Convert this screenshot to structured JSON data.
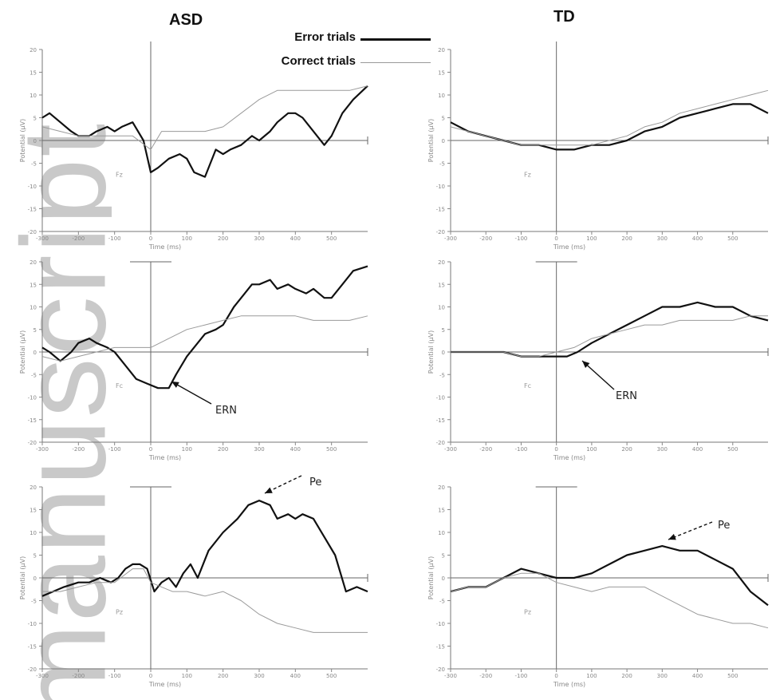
{
  "figure": {
    "group_titles": [
      "ASD",
      "TD"
    ],
    "legend": [
      {
        "label": "Error trials",
        "color": "#111111",
        "style": "thick"
      },
      {
        "label": "Correct trials",
        "color": "#9a9a9a",
        "style": "thin"
      }
    ],
    "watermark": "manuscript"
  },
  "chart_data": [
    {
      "type": "line",
      "panel": "ASD-1",
      "group": "ASD",
      "xlabel": "Time (ms)",
      "ylabel": "Potential (µV)",
      "xlim": [
        -300,
        600
      ],
      "ylim": [
        -20,
        20
      ],
      "xticks": [
        -300,
        -200,
        -100,
        0,
        100,
        200,
        300,
        400,
        500
      ],
      "yticks": [
        20,
        15,
        10,
        5,
        0,
        -5,
        -10,
        -15,
        -20
      ],
      "electrode_label": "Fz",
      "series": [
        {
          "name": "Error trials",
          "color": "#111111",
          "x": [
            -300,
            -280,
            -250,
            -220,
            -200,
            -170,
            -150,
            -120,
            -100,
            -80,
            -50,
            -20,
            0,
            20,
            50,
            80,
            100,
            120,
            150,
            180,
            200,
            220,
            250,
            280,
            300,
            330,
            350,
            380,
            400,
            420,
            450,
            480,
            500,
            530,
            560,
            600
          ],
          "y": [
            5,
            6,
            4,
            2,
            1,
            1,
            2,
            3,
            2,
            3,
            4,
            0,
            -7,
            -6,
            -4,
            -3,
            -4,
            -7,
            -8,
            -2,
            -3,
            -2,
            -1,
            1,
            0,
            2,
            4,
            6,
            6,
            5,
            2,
            -1,
            1,
            6,
            9,
            12
          ]
        },
        {
          "name": "Correct trials",
          "color": "#9a9a9a",
          "x": [
            -300,
            -250,
            -200,
            -150,
            -100,
            -50,
            0,
            30,
            60,
            100,
            150,
            200,
            250,
            300,
            350,
            400,
            450,
            500,
            550,
            600
          ],
          "y": [
            3,
            2,
            1,
            1,
            1,
            1,
            -2,
            2,
            2,
            2,
            2,
            3,
            6,
            9,
            11,
            11,
            11,
            11,
            11,
            12
          ]
        }
      ]
    },
    {
      "type": "line",
      "panel": "TD-1",
      "group": "TD",
      "xlabel": "Time (ms)",
      "ylabel": "Potential (µV)",
      "xlim": [
        -300,
        600
      ],
      "ylim": [
        -20,
        20
      ],
      "xticks": [
        -300,
        -200,
        -100,
        0,
        100,
        200,
        300,
        400,
        500
      ],
      "yticks": [
        20,
        15,
        10,
        5,
        0,
        -5,
        -10,
        -15,
        -20
      ],
      "electrode_label": "Fz",
      "series": [
        {
          "name": "Error trials",
          "color": "#111111",
          "x": [
            -300,
            -250,
            -200,
            -150,
            -100,
            -50,
            0,
            50,
            100,
            150,
            200,
            250,
            300,
            350,
            400,
            450,
            500,
            550,
            600
          ],
          "y": [
            4,
            2,
            1,
            0,
            -1,
            -1,
            -2,
            -2,
            -1,
            -1,
            0,
            2,
            3,
            5,
            6,
            7,
            8,
            8,
            6
          ]
        },
        {
          "name": "Correct trials",
          "color": "#9a9a9a",
          "x": [
            -300,
            -250,
            -200,
            -150,
            -100,
            -50,
            0,
            50,
            100,
            150,
            200,
            250,
            300,
            350,
            400,
            450,
            500,
            550,
            600
          ],
          "y": [
            3,
            2,
            1,
            0,
            -1,
            -1,
            -1,
            -1,
            -1,
            0,
            1,
            3,
            4,
            6,
            7,
            8,
            9,
            10,
            11
          ]
        }
      ]
    },
    {
      "type": "line",
      "panel": "ASD-2",
      "group": "ASD",
      "xlabel": "Time (ms)",
      "ylabel": "Potential (µV)",
      "xlim": [
        -300,
        600
      ],
      "ylim": [
        -20,
        20
      ],
      "xticks": [
        -300,
        -200,
        -100,
        0,
        100,
        200,
        300,
        400,
        500
      ],
      "yticks": [
        20,
        15,
        10,
        5,
        0,
        -5,
        -10,
        -15,
        -20
      ],
      "electrode_label": "Fc",
      "annotation": "ERN",
      "series": [
        {
          "name": "Error trials",
          "color": "#111111",
          "x": [
            -300,
            -280,
            -250,
            -220,
            -200,
            -170,
            -150,
            -120,
            -100,
            -70,
            -40,
            -10,
            20,
            50,
            70,
            100,
            130,
            150,
            180,
            200,
            230,
            260,
            280,
            300,
            330,
            350,
            380,
            400,
            430,
            450,
            480,
            500,
            530,
            560,
            600
          ],
          "y": [
            1,
            0,
            -2,
            0,
            2,
            3,
            2,
            1,
            0,
            -3,
            -6,
            -7,
            -8,
            -8,
            -5,
            -1,
            2,
            4,
            5,
            6,
            10,
            13,
            15,
            15,
            16,
            14,
            15,
            14,
            13,
            14,
            12,
            12,
            15,
            18,
            19
          ]
        },
        {
          "name": "Correct trials",
          "color": "#9a9a9a",
          "x": [
            -300,
            -250,
            -200,
            -150,
            -100,
            -50,
            0,
            50,
            100,
            150,
            200,
            250,
            300,
            350,
            400,
            450,
            500,
            550,
            600
          ],
          "y": [
            -1,
            -2,
            -1,
            0,
            1,
            1,
            1,
            3,
            5,
            6,
            7,
            8,
            8,
            8,
            8,
            7,
            7,
            7,
            8
          ]
        }
      ]
    },
    {
      "type": "line",
      "panel": "TD-2",
      "group": "TD",
      "xlabel": "Time (ms)",
      "ylabel": "Potential (µV)",
      "xlim": [
        -300,
        600
      ],
      "ylim": [
        -20,
        20
      ],
      "xticks": [
        -300,
        -200,
        -100,
        0,
        100,
        200,
        300,
        400,
        500
      ],
      "yticks": [
        20,
        15,
        10,
        5,
        0,
        -5,
        -10,
        -15,
        -20
      ],
      "electrode_label": "Fc",
      "annotation": "ERN",
      "series": [
        {
          "name": "Error trials",
          "color": "#111111",
          "x": [
            -300,
            -250,
            -200,
            -150,
            -100,
            -50,
            0,
            30,
            60,
            100,
            150,
            200,
            250,
            300,
            350,
            400,
            450,
            500,
            550,
            600
          ],
          "y": [
            0,
            0,
            0,
            0,
            -1,
            -1,
            -1,
            -1,
            0,
            2,
            4,
            6,
            8,
            10,
            10,
            11,
            10,
            10,
            8,
            7
          ]
        },
        {
          "name": "Correct trials",
          "color": "#9a9a9a",
          "x": [
            -300,
            -250,
            -200,
            -150,
            -100,
            -50,
            0,
            50,
            100,
            150,
            200,
            250,
            300,
            350,
            400,
            450,
            500,
            550,
            600
          ],
          "y": [
            0,
            0,
            0,
            0,
            -1,
            -1,
            0,
            1,
            3,
            4,
            5,
            6,
            6,
            7,
            7,
            7,
            7,
            8,
            8
          ]
        }
      ]
    },
    {
      "type": "line",
      "panel": "ASD-3",
      "group": "ASD",
      "xlabel": "Time (ms)",
      "ylabel": "Potential (µV)",
      "xlim": [
        -300,
        600
      ],
      "ylim": [
        -20,
        20
      ],
      "xticks": [
        -300,
        -200,
        -100,
        0,
        100,
        200,
        300,
        400,
        500
      ],
      "yticks": [
        20,
        15,
        10,
        5,
        0,
        -5,
        -10,
        -15,
        -20
      ],
      "electrode_label": "Pz",
      "annotation": "Pe",
      "series": [
        {
          "name": "Error trials",
          "color": "#111111",
          "x": [
            -300,
            -270,
            -240,
            -200,
            -170,
            -140,
            -110,
            -90,
            -70,
            -50,
            -30,
            -10,
            10,
            30,
            50,
            70,
            90,
            110,
            130,
            160,
            200,
            240,
            270,
            300,
            330,
            350,
            380,
            400,
            420,
            450,
            480,
            510,
            540,
            570,
            600
          ],
          "y": [
            -4,
            -3,
            -2,
            -1,
            -1,
            0,
            -1,
            0,
            2,
            3,
            3,
            2,
            -3,
            -1,
            0,
            -2,
            1,
            3,
            0,
            6,
            10,
            13,
            16,
            17,
            16,
            13,
            14,
            13,
            14,
            13,
            9,
            5,
            -3,
            -2,
            -3
          ]
        },
        {
          "name": "Correct trials",
          "color": "#9a9a9a",
          "x": [
            -300,
            -250,
            -200,
            -150,
            -100,
            -50,
            -20,
            0,
            30,
            60,
            100,
            150,
            200,
            250,
            300,
            350,
            400,
            450,
            500,
            550,
            600
          ],
          "y": [
            -3,
            -3,
            -2,
            -1,
            -1,
            2,
            2,
            -1,
            -2,
            -3,
            -3,
            -4,
            -3,
            -5,
            -8,
            -10,
            -11,
            -12,
            -12,
            -12,
            -12
          ]
        }
      ]
    },
    {
      "type": "line",
      "panel": "TD-3",
      "group": "TD",
      "xlabel": "Time (ms)",
      "ylabel": "Potential (µV)",
      "xlim": [
        -300,
        600
      ],
      "ylim": [
        -20,
        20
      ],
      "xticks": [
        -300,
        -200,
        -100,
        0,
        100,
        200,
        300,
        400,
        500
      ],
      "yticks": [
        20,
        15,
        10,
        5,
        0,
        -5,
        -10,
        -15,
        -20
      ],
      "electrode_label": "Pz",
      "annotation": "Pe",
      "series": [
        {
          "name": "Error trials",
          "color": "#111111",
          "x": [
            -300,
            -250,
            -200,
            -150,
            -100,
            -50,
            0,
            50,
            100,
            150,
            200,
            250,
            300,
            350,
            400,
            450,
            500,
            550,
            600
          ],
          "y": [
            -3,
            -2,
            -2,
            0,
            2,
            1,
            0,
            0,
            1,
            3,
            5,
            6,
            7,
            6,
            6,
            4,
            2,
            -3,
            -6
          ]
        },
        {
          "name": "Correct trials",
          "color": "#9a9a9a",
          "x": [
            -300,
            -250,
            -200,
            -150,
            -100,
            -50,
            0,
            50,
            100,
            150,
            200,
            250,
            300,
            350,
            400,
            450,
            500,
            550,
            600
          ],
          "y": [
            -3,
            -2,
            -2,
            0,
            1,
            1,
            -1,
            -2,
            -3,
            -2,
            -2,
            -2,
            -4,
            -6,
            -8,
            -9,
            -10,
            -10,
            -11
          ]
        }
      ]
    }
  ]
}
